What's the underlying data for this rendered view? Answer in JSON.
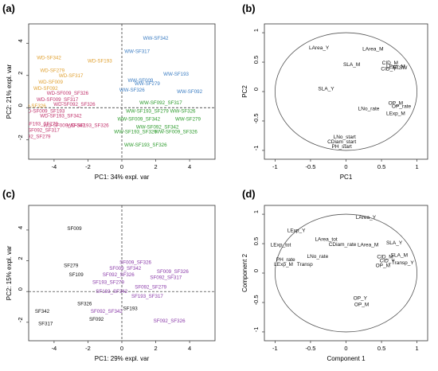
{
  "panels": [
    {
      "letter": "(a)",
      "type": "scatter",
      "xlabel": "PC1: 34% expl. var",
      "ylabel": "PC2: 21% expl. var",
      "xlim": [
        -5.5,
        5.5
      ],
      "ylim": [
        -3.2,
        5.2
      ],
      "xticks": [
        -4,
        -2,
        0,
        2,
        4
      ],
      "yticks": [
        -2,
        0,
        2,
        4
      ],
      "colors": {
        "WD": "#e0a030",
        "WW": "#3a7cc2",
        "DD": "#c0306a",
        "DW": "#2a9a2a"
      },
      "points": [
        {
          "x": 2.0,
          "y": 4.2,
          "label": "WW-SF342",
          "group": "WW"
        },
        {
          "x": 0.9,
          "y": 3.4,
          "label": "WW-SF317",
          "group": "WW"
        },
        {
          "x": 3.2,
          "y": 2.0,
          "label": "WW-SF193",
          "group": "WW"
        },
        {
          "x": 1.1,
          "y": 1.6,
          "label": "WW-SF009",
          "group": "WW"
        },
        {
          "x": 1.5,
          "y": 1.4,
          "label": "WW-SF279",
          "group": "WW"
        },
        {
          "x": 0.6,
          "y": 1.0,
          "label": "WW-SF326",
          "group": "WW"
        },
        {
          "x": 4.0,
          "y": 0.9,
          "label": "WW-SF092",
          "group": "WW"
        },
        {
          "x": -4.3,
          "y": 3.0,
          "label": "WD-SF342",
          "group": "WD"
        },
        {
          "x": -1.3,
          "y": 2.8,
          "label": "WD-SF193",
          "group": "WD"
        },
        {
          "x": -4.1,
          "y": 2.2,
          "label": "WD-SF279",
          "group": "WD"
        },
        {
          "x": -3.0,
          "y": 1.9,
          "label": "WD-SF317",
          "group": "WD"
        },
        {
          "x": -4.2,
          "y": 1.5,
          "label": "WD-SF009",
          "group": "WD"
        },
        {
          "x": -4.5,
          "y": 1.1,
          "label": "WD-SF092",
          "group": "WD"
        },
        {
          "x": -5.2,
          "y": 0.0,
          "label": "WD-SF326",
          "group": "WD"
        },
        {
          "x": -3.2,
          "y": 0.8,
          "label": "WD-SF009_SF326",
          "group": "DD"
        },
        {
          "x": -3.8,
          "y": 0.4,
          "label": "WD-SF009_SF317",
          "group": "DD"
        },
        {
          "x": -2.8,
          "y": 0.1,
          "label": "WD-SF092_SF326",
          "group": "DD"
        },
        {
          "x": -4.6,
          "y": -0.3,
          "label": "WD-SF009_SF193",
          "group": "DD"
        },
        {
          "x": -3.6,
          "y": -0.6,
          "label": "WD-SF193_SF342",
          "group": "DD"
        },
        {
          "x": -5.0,
          "y": -1.1,
          "label": "WD-SF193_SF279",
          "group": "DD"
        },
        {
          "x": -3.4,
          "y": -1.2,
          "label": "WD-SF009_SF342",
          "group": "DD"
        },
        {
          "x": -4.9,
          "y": -1.5,
          "label": "WD-SF092_SF317",
          "group": "DD"
        },
        {
          "x": -5.3,
          "y": -1.9,
          "label": "D-SF092_SF279",
          "group": "DD"
        },
        {
          "x": -2.0,
          "y": -1.2,
          "label": "WD-SF193_SF326",
          "group": "DD"
        },
        {
          "x": 2.3,
          "y": 0.2,
          "label": "WW-SF092_SF317",
          "group": "DW"
        },
        {
          "x": 1.5,
          "y": -0.3,
          "label": "WW-SF193_SF279",
          "group": "DW"
        },
        {
          "x": 3.6,
          "y": -0.3,
          "label": "WW-SF326",
          "group": "DW"
        },
        {
          "x": 1.0,
          "y": -0.8,
          "label": "WW-SF009_SF342",
          "group": "DW"
        },
        {
          "x": 3.9,
          "y": -0.8,
          "label": "WW-SF279",
          "group": "DW"
        },
        {
          "x": 2.1,
          "y": -1.3,
          "label": "WW-SF092_SF342",
          "group": "DW"
        },
        {
          "x": 0.8,
          "y": -1.6,
          "label": "WW-SF193_SF326",
          "group": "DW"
        },
        {
          "x": 3.2,
          "y": -1.6,
          "label": "WW-SF009_SF326",
          "group": "DW"
        },
        {
          "x": 1.4,
          "y": -2.4,
          "label": "WW-SF193_SF326",
          "group": "DW"
        }
      ]
    },
    {
      "letter": "(b)",
      "type": "correlation-circle",
      "xlabel": "PC1",
      "ylabel": "PC2",
      "xlim": [
        -1.15,
        1.15
      ],
      "ylim": [
        -1.15,
        1.15
      ],
      "xticks": [
        -1.0,
        -0.5,
        0.0,
        0.5,
        1.0
      ],
      "yticks": [
        -1.0,
        -0.5,
        0.0,
        0.5,
        1.0
      ],
      "variables": [
        {
          "x": -0.38,
          "y": 0.72,
          "label": "LArea_Y"
        },
        {
          "x": 0.38,
          "y": 0.7,
          "label": "LArea_M"
        },
        {
          "x": 0.08,
          "y": 0.43,
          "label": "SLA_M"
        },
        {
          "x": 0.62,
          "y": 0.46,
          "label": "CID_M"
        },
        {
          "x": 0.6,
          "y": 0.36,
          "label": "CID_Y"
        },
        {
          "x": 0.7,
          "y": 0.4,
          "label": "LExp_M"
        },
        {
          "x": 0.76,
          "y": 0.38,
          "label": "FTSW"
        },
        {
          "x": -0.28,
          "y": 0.02,
          "label": "SLA_Y"
        },
        {
          "x": 0.7,
          "y": -0.22,
          "label": "OP_M"
        },
        {
          "x": 0.32,
          "y": -0.32,
          "label": "LNo_rate"
        },
        {
          "x": 0.78,
          "y": -0.28,
          "label": "OP_rate"
        },
        {
          "x": 0.7,
          "y": -0.4,
          "label": "LExp_M"
        },
        {
          "x": -0.02,
          "y": -0.8,
          "label": "LNo_start"
        },
        {
          "x": -0.06,
          "y": -0.88,
          "label": "CDiam_start"
        },
        {
          "x": -0.06,
          "y": -0.96,
          "label": "PH_start"
        }
      ]
    },
    {
      "letter": "(c)",
      "type": "scatter",
      "xlabel": "PC1: 29% expl. var",
      "ylabel": "PC2: 15% expl. var",
      "xlim": [
        -5.5,
        5.5
      ],
      "ylim": [
        -3.2,
        5.6
      ],
      "xticks": [
        -4,
        -2,
        0,
        2,
        4
      ],
      "yticks": [
        -2,
        0,
        2,
        4
      ],
      "colors": {
        "single": "#111111",
        "combo": "#8a3aa8"
      },
      "points": [
        {
          "x": -2.8,
          "y": 4.0,
          "label": "SF009",
          "group": "single"
        },
        {
          "x": -3.0,
          "y": 1.6,
          "label": "SF279",
          "group": "single"
        },
        {
          "x": -2.7,
          "y": 1.0,
          "label": "SF109",
          "group": "single"
        },
        {
          "x": -2.2,
          "y": -0.9,
          "label": "SF326",
          "group": "single"
        },
        {
          "x": -4.7,
          "y": -1.4,
          "label": "SF342",
          "group": "single"
        },
        {
          "x": -4.5,
          "y": -2.2,
          "label": "SF317",
          "group": "single"
        },
        {
          "x": -1.5,
          "y": -1.9,
          "label": "SF092",
          "group": "single"
        },
        {
          "x": 0.5,
          "y": -1.2,
          "label": "SF193",
          "group": "single"
        },
        {
          "x": 0.8,
          "y": 1.8,
          "label": "SF009_SF326",
          "group": "combo"
        },
        {
          "x": 0.2,
          "y": 1.4,
          "label": "SF009_SF342",
          "group": "combo"
        },
        {
          "x": 3.0,
          "y": 1.2,
          "label": "SF009_SF326",
          "group": "combo"
        },
        {
          "x": -0.2,
          "y": 1.0,
          "label": "SF092_SF326",
          "group": "combo"
        },
        {
          "x": 2.6,
          "y": 0.8,
          "label": "SF092_SF317",
          "group": "combo"
        },
        {
          "x": -0.8,
          "y": 0.5,
          "label": "SF193_SF279",
          "group": "combo"
        },
        {
          "x": 1.7,
          "y": 0.2,
          "label": "SF092_SF279",
          "group": "combo"
        },
        {
          "x": -0.6,
          "y": -0.1,
          "label": "SF193_SF342",
          "group": "combo"
        },
        {
          "x": 1.5,
          "y": -0.4,
          "label": "SF193_SF317",
          "group": "combo"
        },
        {
          "x": -0.9,
          "y": -1.4,
          "label": "SF092_SF342",
          "group": "combo"
        },
        {
          "x": 2.8,
          "y": -2.0,
          "label": "SF092_SF326",
          "group": "combo"
        }
      ]
    },
    {
      "letter": "(d)",
      "type": "correlation-circle",
      "xlabel": "Component 1",
      "ylabel": "Component 2",
      "xlim": [
        -1.15,
        1.15
      ],
      "ylim": [
        -1.15,
        1.15
      ],
      "xticks": [
        -1.0,
        -0.5,
        0.0,
        0.5,
        1.0
      ],
      "yticks": [
        -1.0,
        -0.5,
        0.0,
        0.5,
        1.0
      ],
      "variables": [
        {
          "x": 0.28,
          "y": 0.92,
          "label": "LArea_Y"
        },
        {
          "x": -0.7,
          "y": 0.7,
          "label": "LExp_Y"
        },
        {
          "x": -0.28,
          "y": 0.55,
          "label": "LArea_tot"
        },
        {
          "x": -0.92,
          "y": 0.45,
          "label": "LExp_tot"
        },
        {
          "x": -0.05,
          "y": 0.46,
          "label": "CDiam_rate"
        },
        {
          "x": 0.31,
          "y": 0.45,
          "label": "LArea_M"
        },
        {
          "x": 0.68,
          "y": 0.49,
          "label": "SLA_Y"
        },
        {
          "x": 0.75,
          "y": 0.28,
          "label": "SLA_M"
        },
        {
          "x": -0.85,
          "y": 0.2,
          "label": "PH_rate"
        },
        {
          "x": -0.4,
          "y": 0.26,
          "label": "LNo_rate"
        },
        {
          "x": 0.55,
          "y": 0.25,
          "label": "CID_M"
        },
        {
          "x": -0.88,
          "y": 0.12,
          "label": "LExp_M"
        },
        {
          "x": -0.58,
          "y": 0.12,
          "label": "Transp"
        },
        {
          "x": 0.58,
          "y": 0.18,
          "label": "CID_Y"
        },
        {
          "x": 0.52,
          "y": 0.1,
          "label": "OP_M"
        },
        {
          "x": 0.8,
          "y": 0.15,
          "label": "Transp_Y"
        },
        {
          "x": 0.2,
          "y": -0.45,
          "label": "OP_Y"
        },
        {
          "x": 0.22,
          "y": -0.56,
          "label": "OP_M"
        }
      ]
    }
  ]
}
